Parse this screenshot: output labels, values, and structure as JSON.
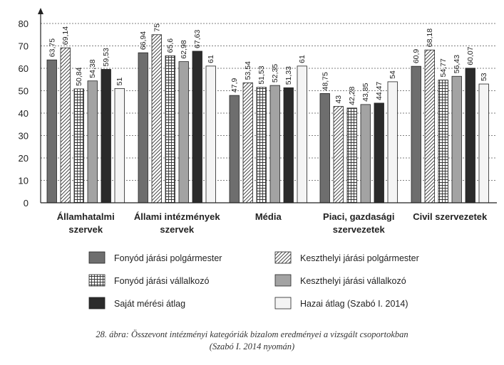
{
  "chart_data": {
    "type": "bar",
    "categories": [
      [
        "Államhatalmi",
        "szervek"
      ],
      [
        "Állami intézmények",
        "szervek"
      ],
      [
        "Média"
      ],
      [
        "Piaci, gazdasági",
        "szervezetek"
      ],
      [
        "Civil szervezetek"
      ]
    ],
    "series": [
      {
        "name": "Fonyód járási polgármester",
        "color": "#6e6e6e",
        "pattern": "solid",
        "values": [
          63.75,
          66.94,
          47.9,
          48.75,
          60.9
        ],
        "labels": [
          "63,75",
          "66,94",
          "47,9",
          "48,75",
          "60,9"
        ]
      },
      {
        "name": "Keszthelyi járási polgármester",
        "color": "#ffffff",
        "pattern": "hatch",
        "values": [
          69.14,
          75,
          53.54,
          43,
          68.18
        ],
        "labels": [
          "69,14",
          "75",
          "53,54",
          "43",
          "68,18"
        ]
      },
      {
        "name": "Fonyód járási vállalkozó",
        "color": "#ffffff",
        "pattern": "grid",
        "values": [
          50.84,
          65.6,
          51.53,
          42.28,
          54.77
        ],
        "labels": [
          "50,84",
          "65,6",
          "51,53",
          "42,28",
          "54,77"
        ]
      },
      {
        "name": "Keszthelyi járási vállalkozó",
        "color": "#a3a3a3",
        "pattern": "solid",
        "values": [
          54.38,
          62.98,
          52.35,
          43.85,
          56.43
        ],
        "labels": [
          "54,38",
          "62,98",
          "52,35",
          "43,85",
          "56,43"
        ]
      },
      {
        "name": "Saját mérési átlag",
        "color": "#2b2b2b",
        "pattern": "solid",
        "values": [
          59.53,
          67.63,
          51.33,
          44.47,
          60.07
        ],
        "labels": [
          "59,53",
          "67,63",
          "51,33",
          "44,47",
          "60,07"
        ]
      },
      {
        "name": "Hazai átlag (Szabó I. 2014)",
        "color": "#f4f4f4",
        "pattern": "solid",
        "values": [
          51,
          61,
          61,
          54,
          53
        ],
        "labels": [
          "51",
          "61",
          "61",
          "54",
          "53"
        ]
      }
    ],
    "yticks": [
      "0",
      "10",
      "20",
      "30",
      "40",
      "50",
      "60",
      "70",
      "80"
    ],
    "ylim": [
      0,
      85
    ],
    "grid": "dashed-horizontal",
    "legend": "bottom, two columns"
  },
  "caption": {
    "line1": "28. ábra: Összevont intézményi kategóriák bizalom eredményei a vizsgált csoportokban",
    "line2": "(Szabó I. 2014 nyomán)"
  }
}
